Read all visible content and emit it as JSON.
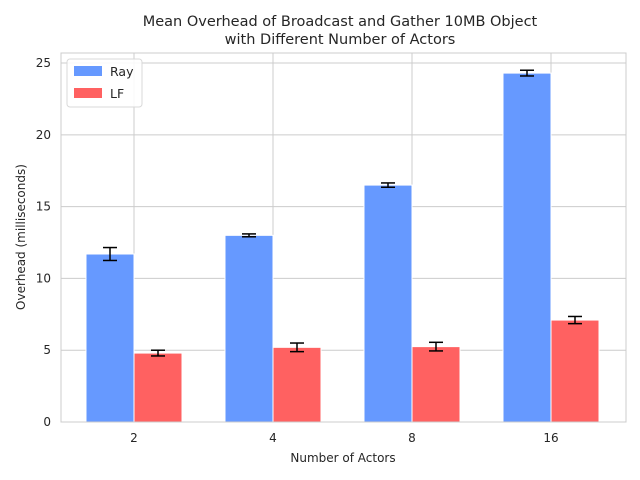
{
  "chart_data": {
    "type": "bar",
    "title": [
      "Mean Overhead of Broadcast and Gather 10MB Object",
      "with Different Number of Actors"
    ],
    "xlabel": "Number of Actors",
    "ylabel": "Overhead (milliseconds)",
    "categories": [
      "2",
      "4",
      "8",
      "16"
    ],
    "ylim": [
      0,
      25.7
    ],
    "yticks": [
      "0",
      "5",
      "10",
      "15",
      "20",
      "25"
    ],
    "grid": true,
    "legend": {
      "placement": "top-left"
    },
    "series": [
      {
        "name": "Ray",
        "color": "#6699ff",
        "values": [
          11.7,
          13.0,
          16.5,
          24.3
        ],
        "errors": [
          0.45,
          0.1,
          0.15,
          0.2
        ]
      },
      {
        "name": "LF",
        "color": "#ff6161",
        "values": [
          4.8,
          5.2,
          5.25,
          7.1
        ],
        "errors": [
          0.2,
          0.3,
          0.3,
          0.25
        ]
      }
    ]
  }
}
